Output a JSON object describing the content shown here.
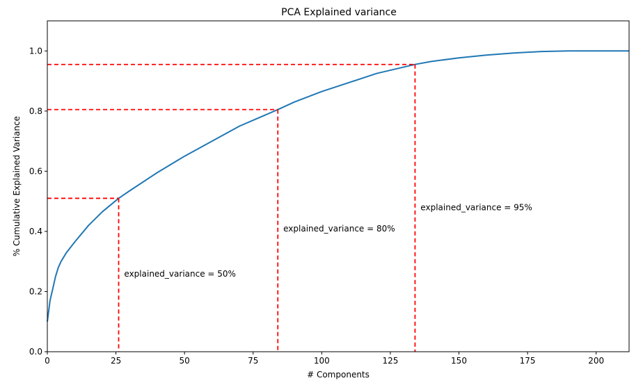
{
  "chart_data": {
    "type": "line",
    "title": "PCA Explained variance",
    "xlabel": "# Components",
    "ylabel": "% Cumulative Explained Variance",
    "xlim": [
      0,
      212
    ],
    "ylim": [
      0.0,
      1.1
    ],
    "xticks": [
      0,
      25,
      50,
      75,
      100,
      125,
      150,
      175,
      200
    ],
    "yticks": [
      0.0,
      0.2,
      0.4,
      0.6,
      0.8,
      1.0
    ],
    "xtick_labels": [
      "0",
      "25",
      "50",
      "75",
      "100",
      "125",
      "150",
      "175",
      "200"
    ],
    "ytick_labels": [
      "0.0",
      "0.2",
      "0.4",
      "0.6",
      "0.8",
      "1.0"
    ],
    "grid": false,
    "series": [
      {
        "color": "#1f77b4",
        "x": [
          0,
          1,
          2,
          3,
          4,
          5,
          7,
          10,
          15,
          20,
          26,
          30,
          40,
          50,
          60,
          70,
          84,
          90,
          100,
          110,
          120,
          134,
          140,
          150,
          160,
          170,
          180,
          190,
          200,
          212
        ],
        "y": [
          0.1,
          0.17,
          0.21,
          0.25,
          0.28,
          0.3,
          0.33,
          0.365,
          0.42,
          0.465,
          0.51,
          0.535,
          0.595,
          0.65,
          0.7,
          0.75,
          0.805,
          0.83,
          0.865,
          0.895,
          0.925,
          0.955,
          0.965,
          0.977,
          0.986,
          0.993,
          0.998,
          1.0,
          1.0,
          1.0
        ]
      }
    ],
    "thresholds": [
      {
        "x": 26,
        "y": 0.51,
        "label": "explained_variance = 50%",
        "label_x": 28,
        "label_y": 0.25
      },
      {
        "x": 84,
        "y": 0.805,
        "label": "explained_variance = 80%",
        "label_x": 86,
        "label_y": 0.4
      },
      {
        "x": 134,
        "y": 0.955,
        "label": "explained_variance = 95%",
        "label_x": 136,
        "label_y": 0.47
      }
    ],
    "threshold_color": "#ff0000",
    "line_color": "#1f77b4"
  }
}
